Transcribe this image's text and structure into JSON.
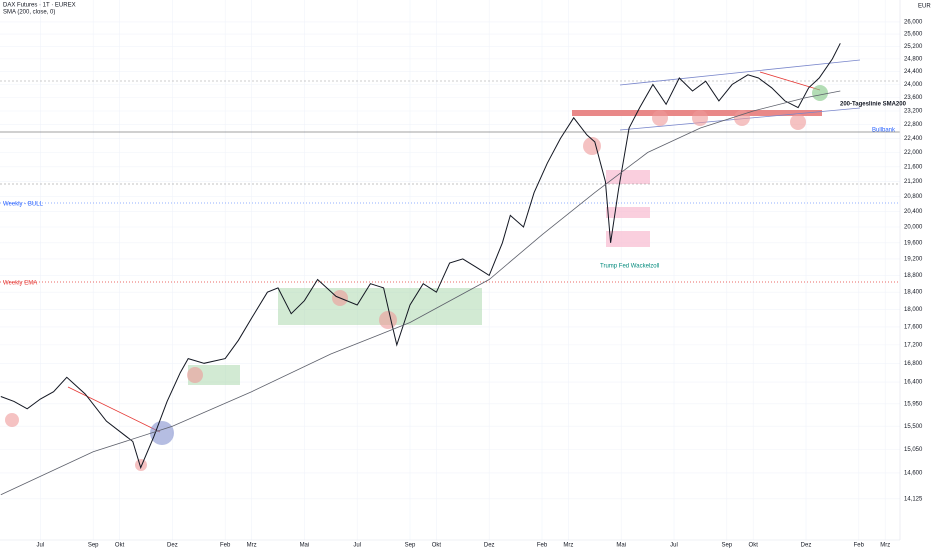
{
  "chart_data": {
    "type": "line",
    "currency": "EUR",
    "log_scale": true,
    "grid": true,
    "ylim": [
      13400,
      26400
    ],
    "xlim": [
      -0.53,
      33.56
    ],
    "yticks": [
      {
        "value": 14125,
        "label": "14,125"
      },
      {
        "value": 14600,
        "label": "14,600"
      },
      {
        "value": 15050,
        "label": "15,050"
      },
      {
        "value": 15500,
        "label": "15,500"
      },
      {
        "value": 15950,
        "label": "15,950"
      },
      {
        "value": 16400,
        "label": "16,400"
      },
      {
        "value": 16800,
        "label": "16,800"
      },
      {
        "value": 17200,
        "label": "17,200"
      },
      {
        "value": 17600,
        "label": "17,600"
      },
      {
        "value": 18000,
        "label": "18,000"
      },
      {
        "value": 18400,
        "label": "18,400"
      },
      {
        "value": 18800,
        "label": "18,800"
      },
      {
        "value": 19200,
        "label": "19,200"
      },
      {
        "value": 19600,
        "label": "19,600"
      },
      {
        "value": 20000,
        "label": "20,000"
      },
      {
        "value": 20400,
        "label": "20,400"
      },
      {
        "value": 20800,
        "label": "20,800"
      },
      {
        "value": 21200,
        "label": "21,200"
      },
      {
        "value": 21600,
        "label": "21,600"
      },
      {
        "value": 22000,
        "label": "22,000"
      },
      {
        "value": 22400,
        "label": "22,400"
      },
      {
        "value": 22800,
        "label": "22,800"
      },
      {
        "value": 23200,
        "label": "23,200"
      },
      {
        "value": 23600,
        "label": "23,600"
      },
      {
        "value": 24000,
        "label": "24,000"
      },
      {
        "value": 24400,
        "label": "24,400"
      },
      {
        "value": 24800,
        "label": "24,800"
      },
      {
        "value": 25200,
        "label": "25,200"
      },
      {
        "value": 25600,
        "label": "25,600"
      },
      {
        "value": 26000,
        "label": "26,000"
      }
    ],
    "xticks": [
      {
        "value": 1,
        "label": "Jul"
      },
      {
        "value": 3,
        "label": "Sep"
      },
      {
        "value": 4,
        "label": "Okt"
      },
      {
        "value": 6,
        "label": "Dez"
      },
      {
        "value": 8,
        "label": "Feb"
      },
      {
        "value": 9,
        "label": "Mrz"
      },
      {
        "value": 11,
        "label": "Mai"
      },
      {
        "value": 13,
        "label": "Jul"
      },
      {
        "value": 15,
        "label": "Sep"
      },
      {
        "value": 16,
        "label": "Okt"
      },
      {
        "value": 18,
        "label": "Dez"
      },
      {
        "value": 20,
        "label": "Feb"
      },
      {
        "value": 21,
        "label": "Mrz"
      },
      {
        "value": 23,
        "label": "Mai"
      },
      {
        "value": 25,
        "label": "Jul"
      },
      {
        "value": 27,
        "label": "Sep"
      },
      {
        "value": 28,
        "label": "Okt"
      },
      {
        "value": 30,
        "label": "Dez"
      },
      {
        "value": 32,
        "label": "Feb"
      },
      {
        "value": 33,
        "label": "Mrz"
      }
    ],
    "series": [
      {
        "name": "DAX Futures · 1T · EUREX",
        "color": "#131722",
        "width": 1,
        "x": [
          -0.5,
          0,
          0.5,
          1,
          1.5,
          2,
          2.7,
          3.5,
          4.5,
          4.8,
          5.3,
          5.8,
          6.3,
          6.6,
          7.2,
          8,
          8.5,
          9,
          9.6,
          10,
          10.5,
          11,
          11.5,
          12.2,
          13,
          13.5,
          14,
          14.3,
          14.5,
          15,
          15.5,
          16,
          16.5,
          17,
          17.5,
          18,
          18.5,
          18.8,
          19.3,
          19.7,
          20.2,
          20.7,
          21.2,
          21.7,
          22,
          22.4,
          22.6,
          22.9,
          23.3,
          23.7,
          24.2,
          24.7,
          25.2,
          25.7,
          26.2,
          26.7,
          27.2,
          27.8,
          28.2,
          28.7,
          29.2,
          29.7,
          30.1,
          30.5,
          31,
          31.3
        ],
        "values": [
          16100,
          16000,
          15850,
          16050,
          16200,
          16500,
          16150,
          15600,
          15200,
          14700,
          15300,
          16000,
          16600,
          16900,
          16800,
          16900,
          17300,
          17800,
          18400,
          18500,
          17900,
          18200,
          18700,
          18300,
          18100,
          18600,
          18500,
          17700,
          17200,
          18100,
          18600,
          18400,
          19100,
          19200,
          19000,
          18800,
          19600,
          20300,
          20000,
          20900,
          21700,
          22400,
          23000,
          22500,
          22300,
          21200,
          19600,
          21000,
          22700,
          23300,
          24000,
          23400,
          24200,
          23800,
          24100,
          23500,
          24000,
          24300,
          24200,
          23900,
          23500,
          23300,
          23900,
          24200,
          24800,
          25300
        ]
      },
      {
        "name": "SMA (200, close, 0)",
        "color": "#5d606b",
        "width": 0.8,
        "x": [
          -0.5,
          3,
          6,
          9,
          12,
          15,
          18,
          20,
          22,
          24,
          26,
          28,
          30,
          31.3
        ],
        "values": [
          14200,
          15000,
          15500,
          16200,
          17000,
          17700,
          18700,
          19800,
          20900,
          22000,
          22700,
          23200,
          23600,
          23800
        ]
      }
    ],
    "annotations": [
      "Weekly - BULL",
      "Weekly EMA",
      "200-Tageslinie SMA200",
      "Bullbank",
      "Trump Fed Wackelzoll"
    ]
  }
}
